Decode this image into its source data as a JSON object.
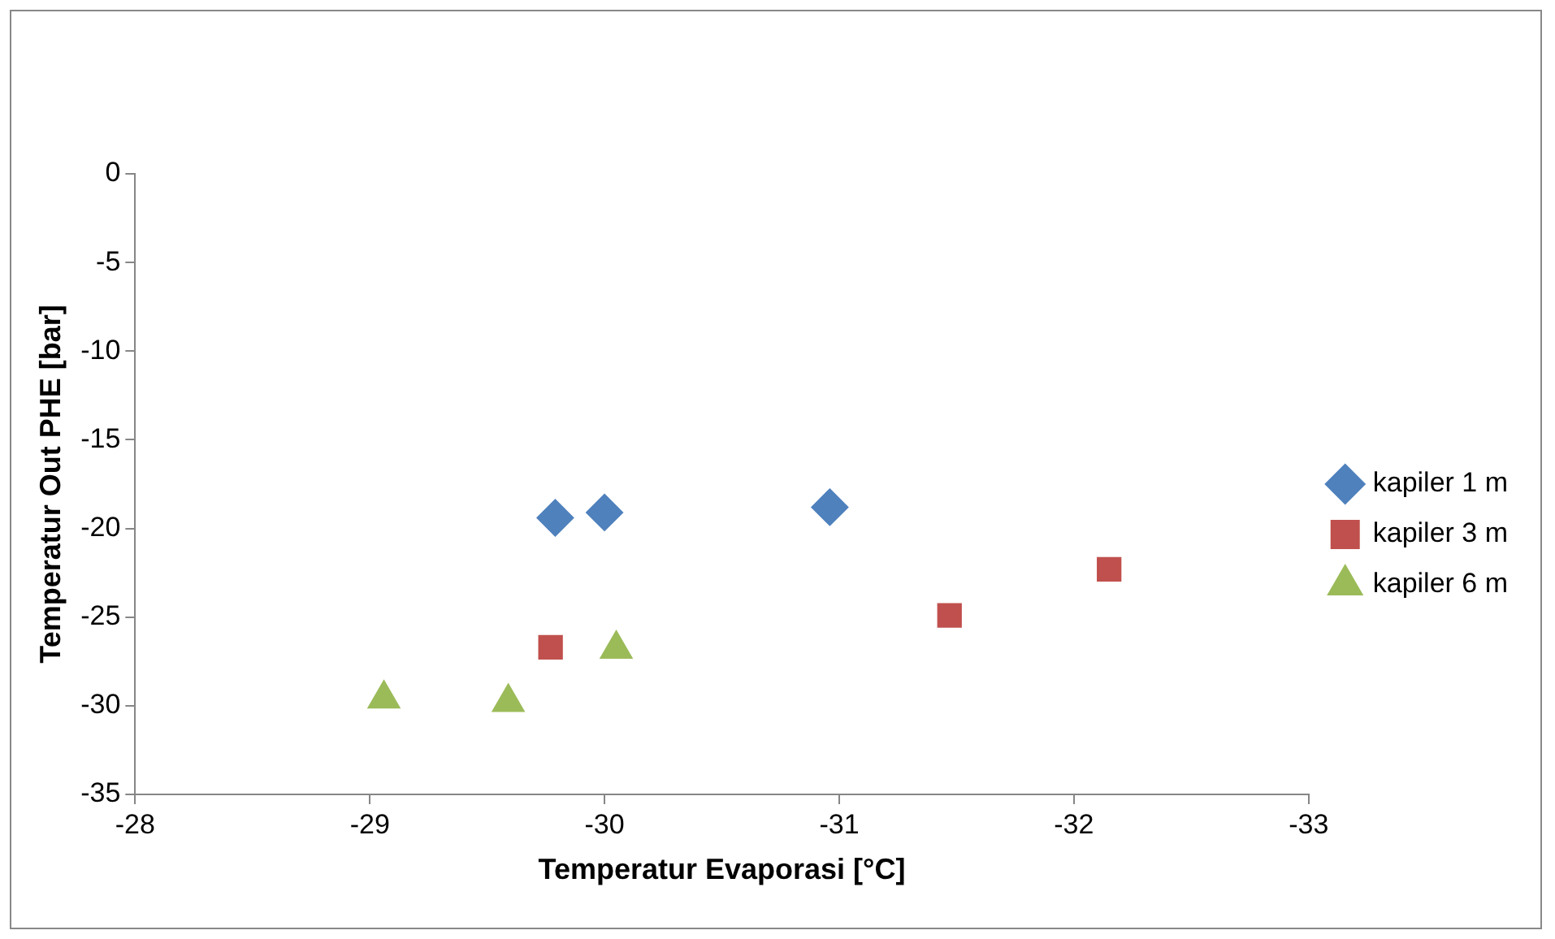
{
  "chart_data": {
    "type": "scatter",
    "xlabel": "Temperatur Evaporasi [°C]",
    "ylabel": "Temperatur Out PHE [bar]",
    "xlim": [
      -28,
      -33
    ],
    "xticks": [
      -28,
      -29,
      -30,
      -31,
      -32,
      -33
    ],
    "ylim": [
      -35,
      0
    ],
    "yticks": [
      -35,
      -30,
      -25,
      -20,
      -15,
      -10,
      -5,
      0
    ],
    "grid": false,
    "legend": "right",
    "series": [
      {
        "name": "kapiler 1 m",
        "color": "#4f81bd",
        "marker": "diamond",
        "x": [
          -29.79,
          -30.0,
          -30.96
        ],
        "values": [
          -19.4,
          -19.1,
          -18.8
        ]
      },
      {
        "name": "kapiler 3 m",
        "color": "#c0504d",
        "marker": "square",
        "x": [
          -29.77,
          -31.47,
          -32.15
        ],
        "values": [
          -26.7,
          -24.9,
          -22.3
        ]
      },
      {
        "name": "kapiler 6 m",
        "color": "#9bbb59",
        "marker": "triangle",
        "x": [
          -29.06,
          -29.59,
          -30.05
        ],
        "values": [
          -29.6,
          -29.8,
          -26.8
        ]
      }
    ]
  }
}
